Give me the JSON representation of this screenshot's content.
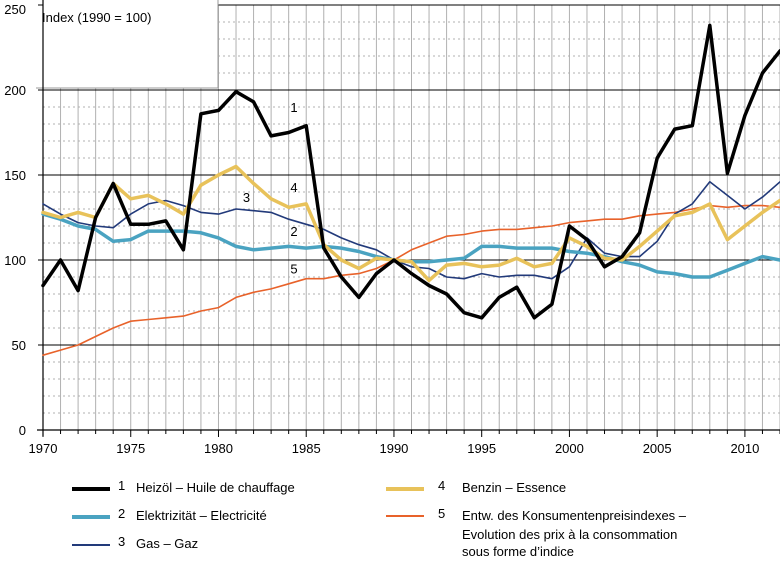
{
  "chart_data": {
    "type": "line",
    "title": "",
    "note": "Index (1990 = 100)",
    "xlabel": "",
    "ylabel": "",
    "xlim": [
      1970,
      2012
    ],
    "ylim": [
      0,
      250
    ],
    "x_ticks": [
      1970,
      1975,
      1980,
      1985,
      1990,
      1995,
      2000,
      2005,
      2010
    ],
    "y_ticks": [
      0,
      50,
      100,
      150,
      200,
      250
    ],
    "x": [
      1970,
      1971,
      1972,
      1973,
      1974,
      1975,
      1976,
      1977,
      1978,
      1979,
      1980,
      1981,
      1982,
      1983,
      1984,
      1985,
      1986,
      1987,
      1988,
      1989,
      1990,
      1991,
      1992,
      1993,
      1994,
      1995,
      1996,
      1997,
      1998,
      1999,
      2000,
      2001,
      2002,
      2003,
      2004,
      2005,
      2006,
      2007,
      2008,
      2009,
      2010,
      2011,
      2012
    ],
    "series": [
      {
        "id": "1",
        "name": "Heizöl – Huile de chauffage",
        "color": "#000000",
        "values": [
          85,
          100,
          82,
          125,
          145,
          121,
          121,
          123,
          106,
          186,
          188,
          199,
          193,
          173,
          175,
          179,
          107,
          90,
          78,
          92,
          100,
          92,
          85,
          80,
          69,
          66,
          78,
          84,
          66,
          74,
          120,
          112,
          96,
          102,
          116,
          160,
          177,
          179,
          238,
          151,
          185,
          210,
          223
        ]
      },
      {
        "id": "2",
        "name": "Elektrizität – Electricité",
        "color": "#4aa3c1",
        "values": [
          127,
          124,
          120,
          118,
          111,
          112,
          117,
          117,
          117,
          116,
          113,
          108,
          106,
          107,
          108,
          107,
          108,
          107,
          105,
          102,
          100,
          99,
          99,
          100,
          101,
          108,
          108,
          107,
          107,
          107,
          105,
          104,
          102,
          99,
          97,
          93,
          92,
          90,
          90,
          94,
          98,
          102,
          100
        ]
      },
      {
        "id": "3",
        "name": "Gas – Gaz",
        "color": "#223a7a",
        "values": [
          133,
          127,
          122,
          120,
          119,
          127,
          133,
          135,
          132,
          128,
          127,
          130,
          129,
          128,
          124,
          121,
          118,
          113,
          109,
          106,
          100,
          96,
          95,
          90,
          89,
          92,
          90,
          91,
          91,
          89,
          96,
          113,
          104,
          102,
          102,
          111,
          127,
          133,
          146,
          138,
          130,
          137,
          146
        ]
      },
      {
        "id": "4",
        "name": "Benzin – Essence",
        "color": "#e8c25a",
        "values": [
          128,
          125,
          128,
          125,
          145,
          136,
          138,
          133,
          127,
          144,
          150,
          155,
          145,
          136,
          131,
          133,
          109,
          100,
          95,
          101,
          100,
          99,
          88,
          97,
          98,
          96,
          97,
          101,
          96,
          98,
          113,
          108,
          101,
          100,
          108,
          117,
          126,
          128,
          133,
          112,
          120,
          128,
          135
        ]
      },
      {
        "id": "5",
        "name": "Entw. des Konsumentenpreisindexes – Evolution des prix à la consommation sous forme d’indice",
        "color": "#e8622a",
        "values": [
          44,
          47,
          50,
          55,
          60,
          64,
          65,
          66,
          67,
          70,
          72,
          78,
          81,
          83,
          86,
          89,
          89,
          91,
          92,
          95,
          100,
          106,
          110,
          114,
          115,
          117,
          118,
          118,
          119,
          120,
          122,
          123,
          124,
          124,
          126,
          127,
          128,
          130,
          132,
          131,
          132,
          132,
          131
        ]
      }
    ],
    "line_labels": [
      {
        "series": "1",
        "text": "1",
        "x": 1984.3,
        "y": 187
      },
      {
        "series": "2",
        "text": "2",
        "x": 1984.3,
        "y": 114
      },
      {
        "series": "3",
        "text": "3",
        "x": 1981.6,
        "y": 134
      },
      {
        "series": "4",
        "text": "4",
        "x": 1984.3,
        "y": 140
      },
      {
        "series": "5",
        "text": "5",
        "x": 1984.3,
        "y": 92
      }
    ]
  },
  "legend": [
    {
      "num": "1",
      "lines": [
        "Heizöl – Huile de chauffage"
      ]
    },
    {
      "num": "2",
      "lines": [
        "Elektrizität – Electricité"
      ]
    },
    {
      "num": "3",
      "lines": [
        "Gas – Gaz"
      ]
    },
    {
      "num": "4",
      "lines": [
        "Benzin – Essence"
      ]
    },
    {
      "num": "5",
      "lines": [
        "Entw. des Konsumentenpreisindexes –",
        "Evolution des prix à la consommation",
        "sous forme d’indice"
      ]
    }
  ]
}
